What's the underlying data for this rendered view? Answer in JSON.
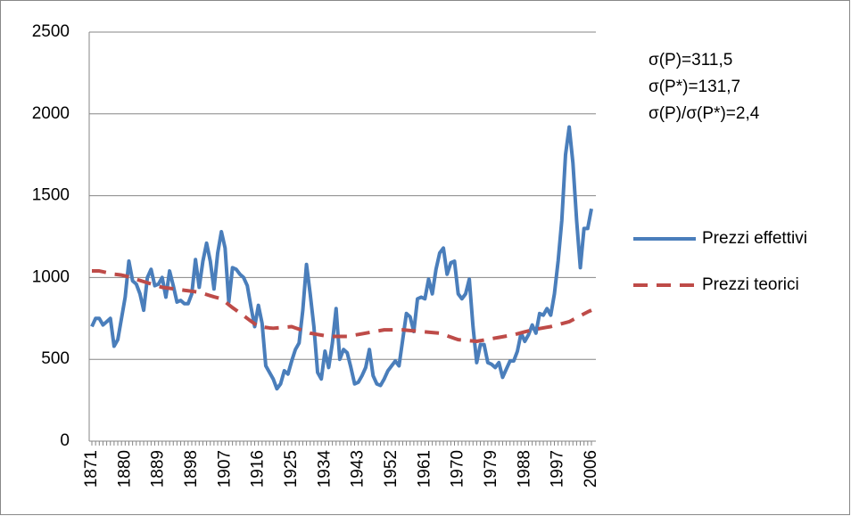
{
  "chart_data": {
    "type": "line",
    "annotations": [
      "σ(P)=311,5",
      "σ(P*)=131,7",
      "σ(P)/σ(P*)=2,4"
    ],
    "x": [
      1871,
      1872,
      1873,
      1874,
      1875,
      1876,
      1877,
      1878,
      1879,
      1880,
      1881,
      1882,
      1883,
      1884,
      1885,
      1886,
      1887,
      1888,
      1889,
      1890,
      1891,
      1892,
      1893,
      1894,
      1895,
      1896,
      1897,
      1898,
      1899,
      1900,
      1901,
      1902,
      1903,
      1904,
      1905,
      1906,
      1907,
      1908,
      1909,
      1910,
      1911,
      1912,
      1913,
      1914,
      1915,
      1916,
      1917,
      1918,
      1919,
      1920,
      1921,
      1922,
      1923,
      1924,
      1925,
      1926,
      1927,
      1928,
      1929,
      1930,
      1931,
      1932,
      1933,
      1934,
      1935,
      1936,
      1937,
      1938,
      1939,
      1940,
      1941,
      1942,
      1943,
      1944,
      1945,
      1946,
      1947,
      1948,
      1949,
      1950,
      1951,
      1952,
      1953,
      1954,
      1955,
      1956,
      1957,
      1958,
      1959,
      1960,
      1961,
      1962,
      1963,
      1964,
      1965,
      1966,
      1967,
      1968,
      1969,
      1970,
      1971,
      1972,
      1973,
      1974,
      1975,
      1976,
      1977,
      1978,
      1979,
      1980,
      1981,
      1982,
      1983,
      1984,
      1985,
      1986,
      1987,
      1988,
      1989,
      1990,
      1991,
      1992,
      1993,
      1994,
      1995,
      1996,
      1997,
      1998,
      1999,
      2000,
      2001,
      2002,
      2003,
      2004,
      2005,
      2006
    ],
    "series": [
      {
        "name": "Prezzi effettivi",
        "color": "#4a7ebb",
        "dash": false,
        "values": [
          700,
          750,
          750,
          710,
          730,
          750,
          580,
          620,
          750,
          880,
          1100,
          980,
          960,
          900,
          800,
          1000,
          1050,
          950,
          960,
          1000,
          880,
          1040,
          950,
          850,
          860,
          840,
          840,
          900,
          1110,
          940,
          1100,
          1210,
          1100,
          930,
          1150,
          1280,
          1180,
          850,
          1060,
          1050,
          1020,
          1000,
          950,
          820,
          700,
          830,
          720,
          460,
          420,
          380,
          320,
          350,
          430,
          410,
          490,
          560,
          600,
          800,
          1080,
          900,
          700,
          420,
          380,
          550,
          450,
          600,
          810,
          500,
          560,
          540,
          450,
          350,
          360,
          400,
          450,
          560,
          400,
          350,
          340,
          380,
          430,
          460,
          490,
          460,
          620,
          780,
          760,
          670,
          870,
          880,
          870,
          990,
          900,
          1050,
          1150,
          1180,
          1020,
          1090,
          1100,
          900,
          870,
          900,
          990,
          700,
          480,
          590,
          590,
          480,
          470,
          450,
          480,
          390,
          440,
          490,
          490,
          550,
          660,
          610,
          650,
          710,
          660,
          780,
          770,
          810,
          770,
          900,
          1100,
          1350,
          1750,
          1920,
          1700,
          1350,
          1060,
          1300,
          1300,
          1420
        ]
      },
      {
        "name": "Prezzi teorici",
        "color": "#be4b48",
        "dash": true,
        "values": [
          1040,
          1040,
          1040,
          1035,
          1030,
          1025,
          1020,
          1018,
          1015,
          1010,
          1003,
          996,
          989,
          982,
          975,
          968,
          961,
          954,
          947,
          940,
          937,
          934,
          931,
          928,
          925,
          922,
          919,
          916,
          913,
          910,
          903,
          896,
          889,
          882,
          876,
          870,
          852,
          834,
          816,
          800,
          783,
          767,
          750,
          733,
          717,
          700,
          698,
          695,
          692,
          690,
          692,
          694,
          696,
          698,
          700,
          692,
          684,
          676,
          668,
          660,
          656,
          652,
          648,
          644,
          640,
          640,
          640,
          640,
          640,
          640,
          644,
          648,
          652,
          656,
          660,
          664,
          668,
          672,
          676,
          680,
          680,
          680,
          680,
          680,
          680,
          678,
          676,
          674,
          672,
          670,
          668,
          666,
          664,
          662,
          660,
          652,
          644,
          636,
          628,
          620,
          618,
          616,
          614,
          612,
          610,
          614,
          618,
          622,
          626,
          630,
          634,
          638,
          642,
          646,
          650,
          656,
          662,
          668,
          674,
          680,
          684,
          688,
          692,
          696,
          700,
          706,
          712,
          718,
          724,
          730,
          742,
          754,
          766,
          778,
          790,
          800
        ]
      }
    ],
    "xlim": [
      1871,
      2006
    ],
    "xticks": [
      1871,
      1880,
      1889,
      1898,
      1907,
      1916,
      1925,
      1934,
      1943,
      1952,
      1961,
      1970,
      1979,
      1988,
      1997,
      2006
    ],
    "ylim": [
      0,
      2500
    ],
    "yticks": [
      0,
      500,
      1000,
      1500,
      2000,
      2500
    ],
    "grid": true,
    "legend": "right"
  }
}
